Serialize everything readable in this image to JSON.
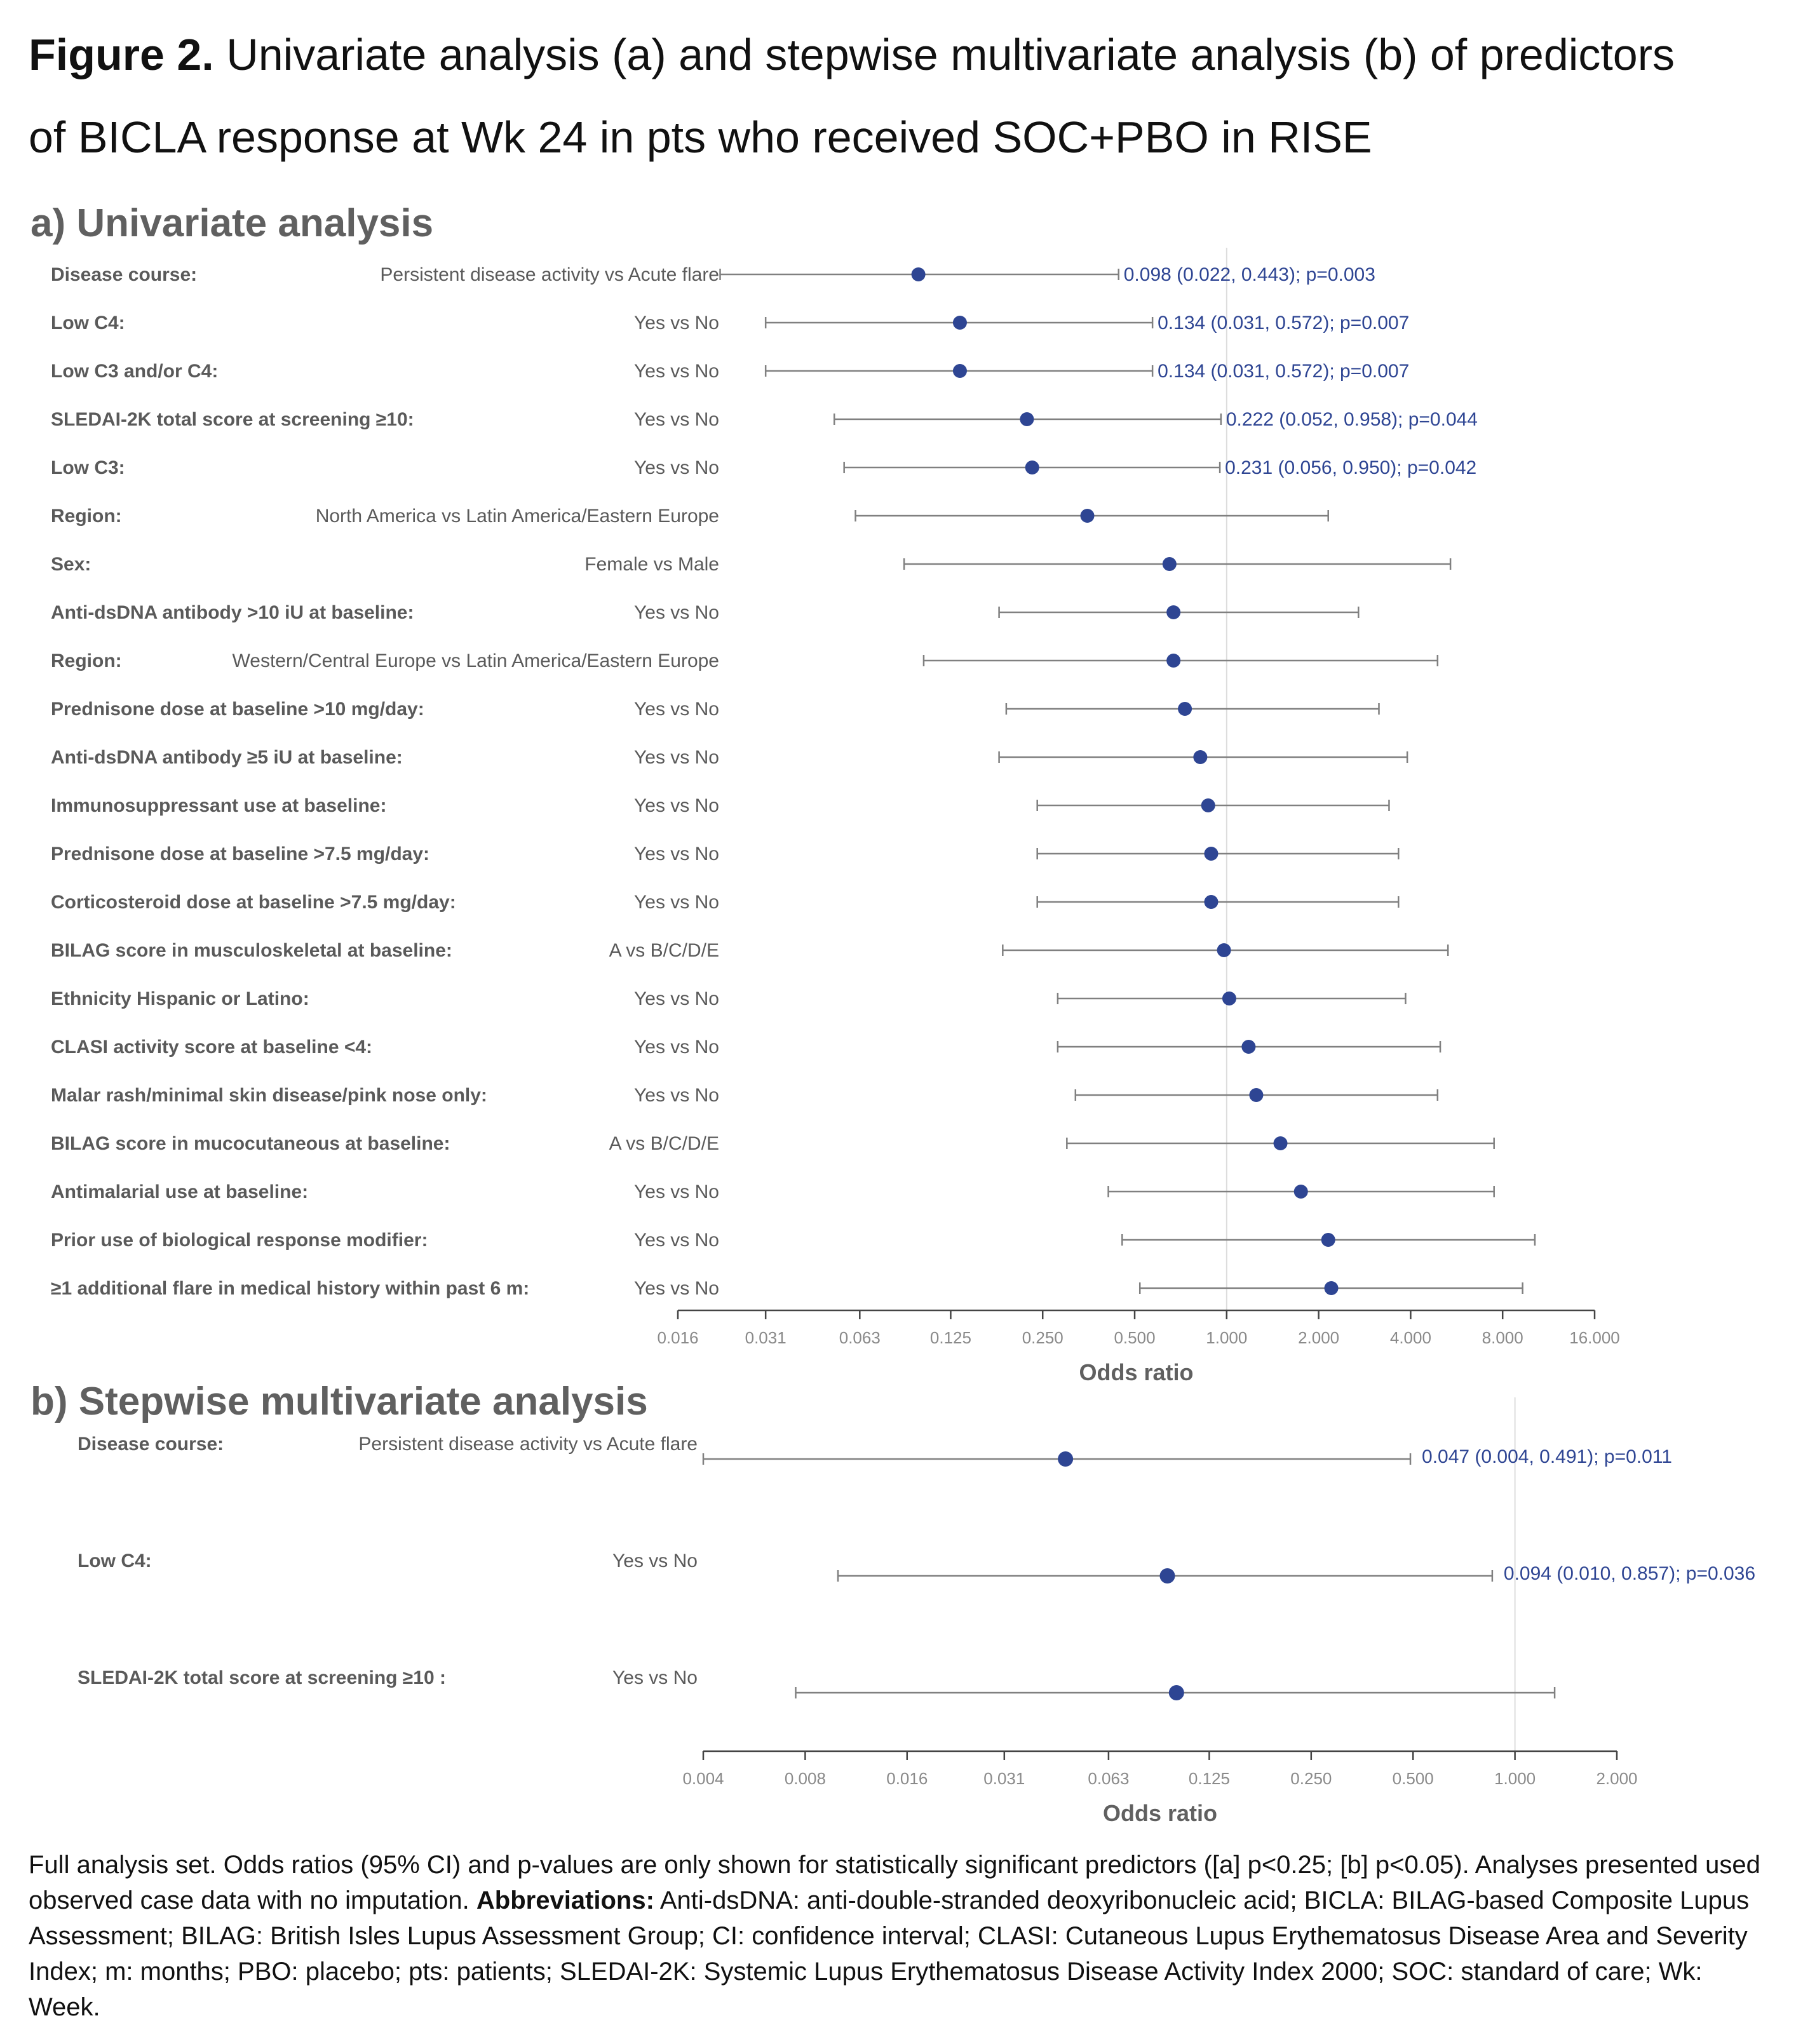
{
  "figure": {
    "label": "Figure 2.",
    "title_line1": "Univariate analysis (a) and stepwise multivariate analysis (b) of predictors",
    "title_line2": "of BICLA response at Wk 24 in pts who received SOC+PBO in RISE"
  },
  "colors": {
    "point": "#2e4593",
    "annotation": "#2e4593",
    "whisker": "#808080",
    "label": "#5a5a5a",
    "axis": "#444444",
    "refline": "#dddddd",
    "heading": "#606060"
  },
  "chart_data": [
    {
      "type": "forest",
      "heading": "a) Univariate analysis",
      "xlabel": "Odds ratio",
      "x_scale": "log2",
      "xlim": [
        0.016,
        16.0
      ],
      "x_ticks": [
        "0.016",
        "0.031",
        "0.063",
        "0.125",
        "0.250",
        "0.500",
        "1.000",
        "2.000",
        "4.000",
        "8.000",
        "16.000"
      ],
      "reference_line": 1.0,
      "rows": [
        {
          "variable": "Disease course:",
          "comparison": "Persistent disease activity vs Acute flare",
          "or": 0.098,
          "lo": 0.022,
          "hi": 0.443,
          "annotation": "0.098 (0.022, 0.443); p=0.003"
        },
        {
          "variable": "Low C4:",
          "comparison": "Yes vs No",
          "or": 0.134,
          "lo": 0.031,
          "hi": 0.572,
          "annotation": "0.134 (0.031, 0.572); p=0.007"
        },
        {
          "variable": "Low C3 and/or C4:",
          "comparison": "Yes vs No",
          "or": 0.134,
          "lo": 0.031,
          "hi": 0.572,
          "annotation": "0.134 (0.031, 0.572); p=0.007"
        },
        {
          "variable": "SLEDAI-2K total score at screening ≥10:",
          "comparison": "Yes vs No",
          "or": 0.222,
          "lo": 0.052,
          "hi": 0.958,
          "annotation": "0.222 (0.052, 0.958); p=0.044"
        },
        {
          "variable": "Low C3:",
          "comparison": "Yes vs No",
          "or": 0.231,
          "lo": 0.056,
          "hi": 0.95,
          "annotation": "0.231 (0.056, 0.950); p=0.042"
        },
        {
          "variable": "Region:",
          "comparison": "North America vs Latin America/Eastern Europe",
          "or": 0.35,
          "lo": 0.061,
          "hi": 2.15
        },
        {
          "variable": "Sex:",
          "comparison": "Female vs Male",
          "or": 0.65,
          "lo": 0.088,
          "hi": 5.4
        },
        {
          "variable": "Anti-dsDNA antibody >10 iU at baseline:",
          "comparison": "Yes vs No",
          "or": 0.67,
          "lo": 0.18,
          "hi": 2.7
        },
        {
          "variable": "Region:",
          "comparison": "Western/Central Europe vs Latin America/Eastern Europe",
          "or": 0.67,
          "lo": 0.102,
          "hi": 4.9
        },
        {
          "variable": "Prednisone dose at baseline >10 mg/day:",
          "comparison": "Yes vs No",
          "or": 0.73,
          "lo": 0.19,
          "hi": 3.15
        },
        {
          "variable": "Anti-dsDNA antibody ≥5 iU at baseline:",
          "comparison": "Yes vs No",
          "or": 0.82,
          "lo": 0.18,
          "hi": 3.9
        },
        {
          "variable": "Immunosuppressant use at baseline:",
          "comparison": "Yes vs No",
          "or": 0.87,
          "lo": 0.24,
          "hi": 3.4
        },
        {
          "variable": "Prednisone dose at baseline >7.5 mg/day:",
          "comparison": "Yes vs No",
          "or": 0.89,
          "lo": 0.24,
          "hi": 3.65
        },
        {
          "variable": "Corticosteroid dose at baseline >7.5 mg/day:",
          "comparison": "Yes vs No",
          "or": 0.89,
          "lo": 0.24,
          "hi": 3.65
        },
        {
          "variable": "BILAG score in musculoskeletal at baseline:",
          "comparison": "A vs B/C/D/E",
          "or": 0.98,
          "lo": 0.185,
          "hi": 5.3
        },
        {
          "variable": "Ethnicity Hispanic or Latino:",
          "comparison": "Yes vs No",
          "or": 1.02,
          "lo": 0.28,
          "hi": 3.85
        },
        {
          "variable": "CLASI activity score at baseline <4:",
          "comparison": "Yes vs No",
          "or": 1.18,
          "lo": 0.28,
          "hi": 5.0
        },
        {
          "variable": "Malar rash/minimal skin disease/pink nose only:",
          "comparison": "Yes vs No",
          "or": 1.25,
          "lo": 0.32,
          "hi": 4.9
        },
        {
          "variable": "BILAG score in mucocutaneous at baseline:",
          "comparison": "A vs B/C/D/E",
          "or": 1.5,
          "lo": 0.3,
          "hi": 7.5
        },
        {
          "variable": "Antimalarial use at baseline:",
          "comparison": "Yes vs No",
          "or": 1.75,
          "lo": 0.41,
          "hi": 7.5
        },
        {
          "variable": "Prior use of biological response modifier:",
          "comparison": "Yes vs No",
          "or": 2.15,
          "lo": 0.455,
          "hi": 10.2
        },
        {
          "variable": "≥1 additional flare in medical history within past 6 m:",
          "comparison": "Yes vs No",
          "or": 2.2,
          "lo": 0.52,
          "hi": 9.3
        }
      ]
    },
    {
      "type": "forest",
      "heading": "b) Stepwise multivariate analysis",
      "xlabel": "Odds ratio",
      "x_scale": "log2",
      "xlim": [
        0.004,
        2.0
      ],
      "x_ticks": [
        "0.004",
        "0.008",
        "0.016",
        "0.031",
        "0.063",
        "0.125",
        "0.250",
        "0.500",
        "1.000",
        "2.000"
      ],
      "reference_line": 1.0,
      "rows": [
        {
          "variable": "Disease course:",
          "comparison": "Persistent disease activity vs Acute flare",
          "or": 0.047,
          "lo": 0.004,
          "hi": 0.491,
          "annotation": "0.047 (0.004, 0.491); p=0.011"
        },
        {
          "variable": "Low C4:",
          "comparison": "Yes vs No",
          "or": 0.094,
          "lo": 0.01,
          "hi": 0.857,
          "annotation": "0.094 (0.010, 0.857); p=0.036"
        },
        {
          "variable": "SLEDAI-2K total score at screening ≥10 :",
          "comparison": "Yes vs No",
          "or": 0.1,
          "lo": 0.0075,
          "hi": 1.31
        }
      ]
    }
  ],
  "footnote": {
    "text1": "Full analysis set. Odds ratios (95% CI) and p-values are only shown for statistically significant predictors ([a] p<0.25; [b] p<0.05). Analyses presented used observed case data with no imputation. ",
    "bold": "Abbreviations:",
    "text2": " Anti-dsDNA: anti-double-stranded deoxyribonucleic acid; BICLA: BILAG-based Composite Lupus Assessment; BILAG: British Isles Lupus Assessment Group; CI: confidence interval; CLASI: Cutaneous Lupus Erythematosus Disease Area and Severity Index; m: months; PBO: placebo; pts: patients; SLEDAI-2K: Systemic Lupus Erythematosus Disease Activity Index 2000; SOC: standard of care; Wk: Week."
  }
}
